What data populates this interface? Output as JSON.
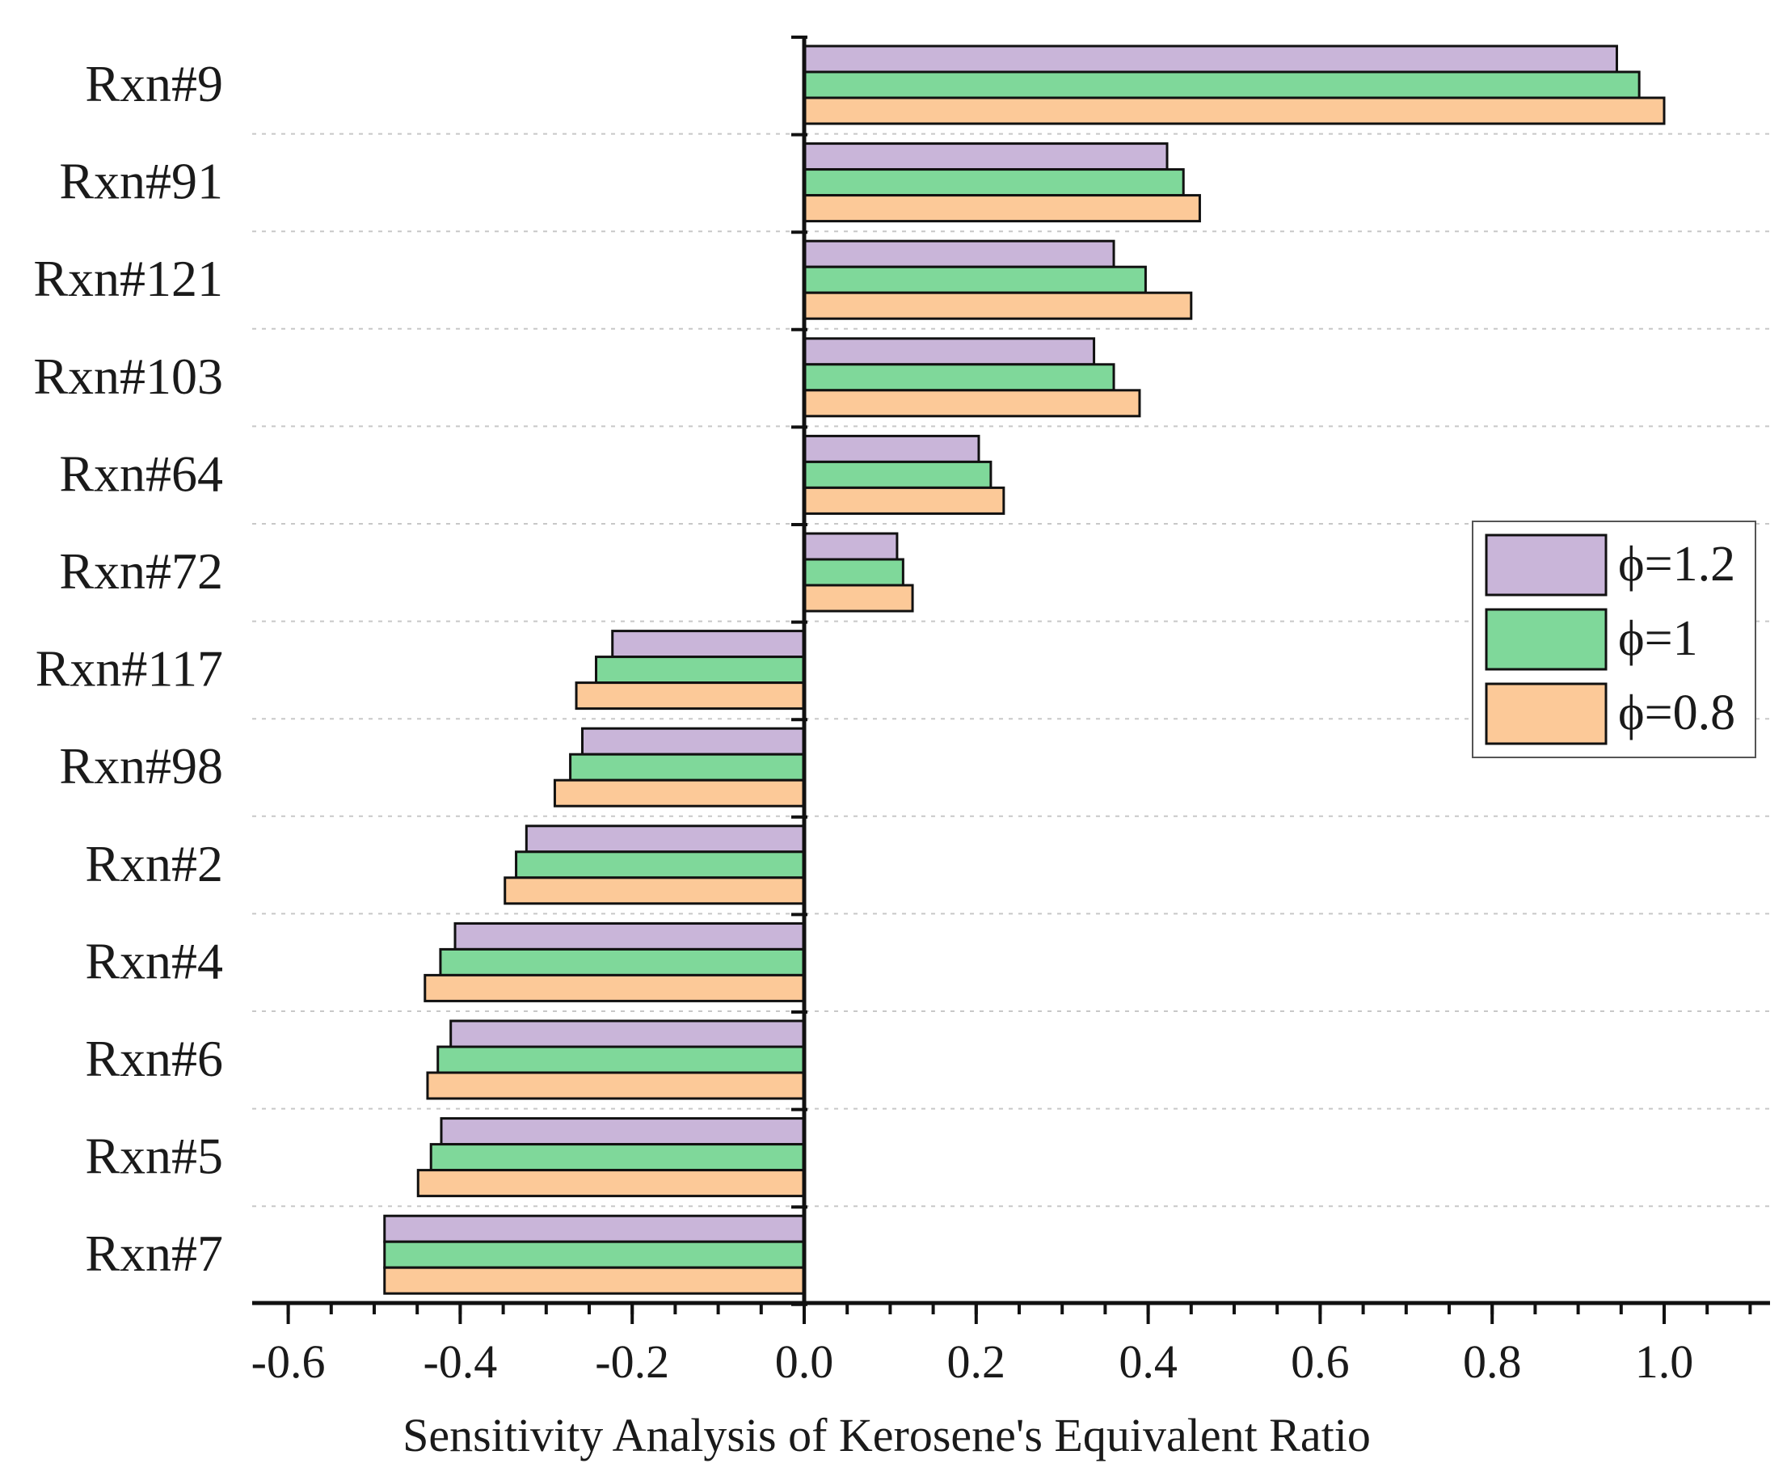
{
  "chart_data": {
    "type": "bar",
    "orientation": "horizontal",
    "title": "",
    "xlabel": "Sensitivity Analysis of Kerosene's Equivalent Ratio",
    "ylabel": "",
    "xlim": [
      -0.645,
      1.13
    ],
    "xticks": [
      -0.6,
      -0.4,
      -0.2,
      0.0,
      0.2,
      0.4,
      0.6,
      0.8,
      1.0
    ],
    "xtick_labels": [
      "-0.6",
      "-0.4",
      "-0.2",
      "0.0",
      "0.2",
      "0.4",
      "0.6",
      "0.8",
      "1.0"
    ],
    "grid": "horizontal dashed separators",
    "legend_position": "right",
    "categories": [
      "Rxn#9",
      "Rxn#91",
      "Rxn#121",
      "Rxn#103",
      "Rxn#64",
      "Rxn#72",
      "Rxn#117",
      "Rxn#98",
      "Rxn#2",
      "Rxn#4",
      "Rxn#6",
      "Rxn#5",
      "Rxn#7"
    ],
    "series": [
      {
        "name": "ϕ=1.2",
        "color": "#c9b5d9",
        "values": [
          0.945,
          0.422,
          0.36,
          0.337,
          0.203,
          0.108,
          -0.223,
          -0.258,
          -0.323,
          -0.406,
          -0.411,
          -0.422,
          -0.488
        ]
      },
      {
        "name": "ϕ=1",
        "color": "#7fd89a",
        "values": [
          0.971,
          0.441,
          0.397,
          0.36,
          0.217,
          0.115,
          -0.242,
          -0.272,
          -0.335,
          -0.423,
          -0.426,
          -0.434,
          -0.488
        ]
      },
      {
        "name": "ϕ=0.8",
        "color": "#fcc998",
        "values": [
          1.0,
          0.46,
          0.45,
          0.39,
          0.232,
          0.126,
          -0.265,
          -0.29,
          -0.348,
          -0.441,
          -0.438,
          -0.449,
          -0.488
        ]
      }
    ]
  }
}
